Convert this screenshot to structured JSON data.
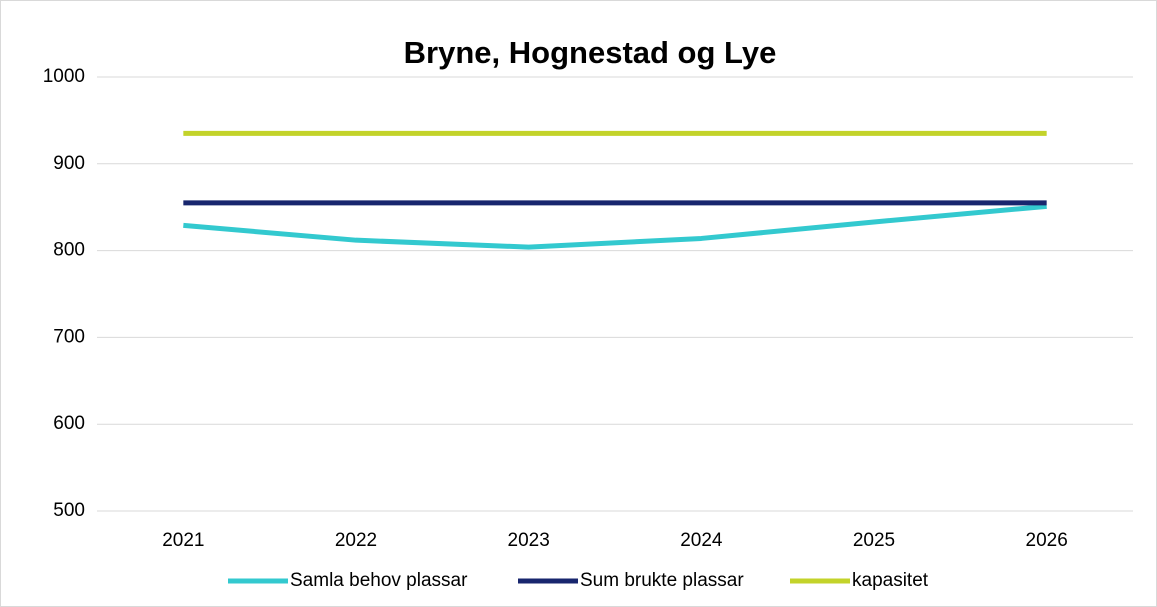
{
  "chart_data": {
    "type": "line",
    "title": "Bryne, Hognestad og Lye",
    "categories": [
      "2021",
      "2022",
      "2023",
      "2024",
      "2025",
      "2026"
    ],
    "series": [
      {
        "name": "Samla behov plassar",
        "color": "#33c9cf",
        "values": [
          829,
          812,
          804,
          814,
          833,
          851
        ]
      },
      {
        "name": "Sum brukte plassar",
        "color": "#18266e",
        "values": [
          855,
          855,
          855,
          855,
          855,
          855
        ]
      },
      {
        "name": "kapasitet",
        "color": "#c3d32a",
        "values": [
          935,
          935,
          935,
          935,
          935,
          935
        ]
      }
    ],
    "ylim": [
      500,
      1000
    ],
    "yticks": [
      500,
      600,
      700,
      800,
      900,
      1000
    ],
    "grid": true,
    "legend": "bottom"
  }
}
